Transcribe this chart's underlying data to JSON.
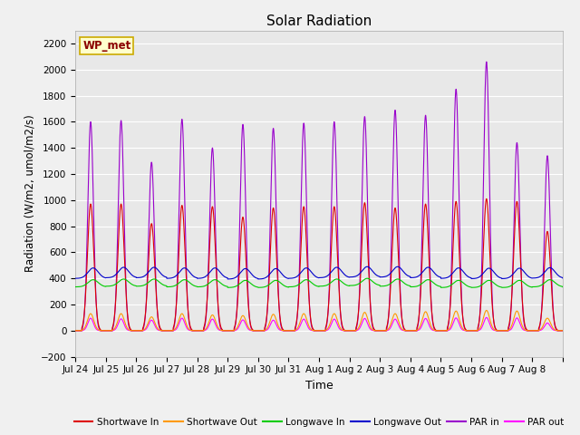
{
  "title": "Solar Radiation",
  "xlabel": "Time",
  "ylabel": "Radiation (W/m2, umol/m2/s)",
  "ylim": [
    -200,
    2300
  ],
  "yticks": [
    -200,
    0,
    200,
    400,
    600,
    800,
    1000,
    1200,
    1400,
    1600,
    1800,
    2000,
    2200
  ],
  "bg_color": "#e8e8e8",
  "fig_color": "#f0f0f0",
  "label_box": "WP_met",
  "series": [
    {
      "name": "Shortwave In",
      "color": "#dd0000"
    },
    {
      "name": "Shortwave Out",
      "color": "#ff9900"
    },
    {
      "name": "Longwave In",
      "color": "#00cc00"
    },
    {
      "name": "Longwave Out",
      "color": "#0000cc"
    },
    {
      "name": "PAR in",
      "color": "#9900cc"
    },
    {
      "name": "PAR out",
      "color": "#ff00ff"
    }
  ],
  "n_days": 16,
  "xtick_labels": [
    "Jul 24",
    "Jul 25",
    "Jul 26",
    "Jul 27",
    "Jul 28",
    "Jul 29",
    "Jul 30",
    "Jul 31",
    "Aug 1",
    "Aug 2",
    "Aug 3",
    "Aug 4",
    "Aug 5",
    "Aug 6",
    "Aug 7",
    "Aug 8"
  ],
  "sw_in_peaks": [
    970,
    970,
    820,
    960,
    950,
    870,
    940,
    950,
    950,
    980,
    940,
    970,
    990,
    1010,
    990,
    760
  ],
  "sw_out_peaks": [
    130,
    130,
    105,
    130,
    120,
    115,
    125,
    130,
    130,
    140,
    130,
    145,
    150,
    155,
    150,
    95
  ],
  "par_in_peaks": [
    1600,
    1610,
    1290,
    1620,
    1400,
    1580,
    1550,
    1590,
    1600,
    1640,
    1690,
    1650,
    1850,
    2060,
    1440,
    1340
  ],
  "par_out_peaks": [
    95,
    90,
    80,
    95,
    88,
    82,
    80,
    88,
    88,
    93,
    88,
    93,
    97,
    100,
    97,
    58
  ],
  "lw_in_base": [
    335,
    340,
    340,
    335,
    335,
    330,
    330,
    335,
    340,
    345,
    340,
    335,
    330,
    330,
    330,
    335
  ],
  "lw_out_base": [
    400,
    405,
    405,
    400,
    400,
    395,
    395,
    400,
    405,
    410,
    410,
    405,
    400,
    398,
    398,
    402
  ]
}
